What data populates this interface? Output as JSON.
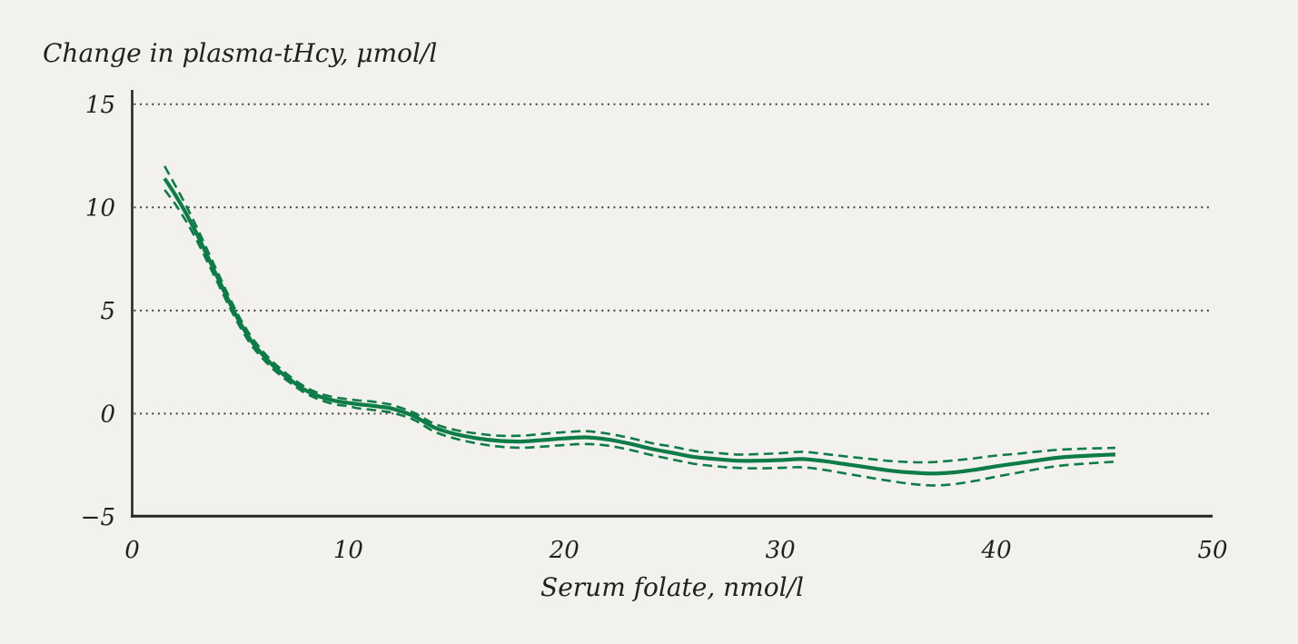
{
  "chart": {
    "title": "Change in plasma-tHcy, μmol/l",
    "xlabel": "Serum folate, nmol/l"
  },
  "colors": {
    "background": "#f2f1ee",
    "text": "#21211f",
    "axis": "#262624",
    "grid": "#3a3a38",
    "line_green": "#0d7c46"
  },
  "chart_data": {
    "type": "line",
    "title": "Change in plasma-tHcy, μmol/l",
    "xlabel": "Serum folate, nmol/l",
    "ylabel": "Change in plasma-tHcy, μmol/l",
    "xlim": [
      0,
      50
    ],
    "ylim": [
      -5,
      15
    ],
    "x_ticks": [
      0,
      10,
      20,
      30,
      40,
      50
    ],
    "y_ticks": [
      15,
      10,
      5,
      0,
      -5
    ],
    "gridlines_y": [
      15,
      10,
      5,
      0
    ],
    "grid_style": "dotted",
    "legend_position": "none",
    "x": [
      1.5,
      2,
      2.5,
      3,
      3.5,
      4,
      4.5,
      5,
      5.5,
      6,
      6.5,
      7,
      7.5,
      8,
      8.5,
      9,
      9.5,
      10,
      10.5,
      11,
      11.5,
      12,
      13,
      14,
      15,
      16,
      17,
      18,
      19,
      20,
      21,
      22,
      23,
      24,
      25,
      26,
      27,
      28,
      29,
      30,
      31,
      32,
      33,
      34,
      35,
      36,
      37,
      38,
      39,
      40,
      41,
      42,
      43,
      44,
      45,
      45.5
    ],
    "series": [
      {
        "name": "fitted-curve",
        "style": "solid",
        "values": [
          11.4,
          10.6,
          9.7,
          8.7,
          7.6,
          6.5,
          5.4,
          4.4,
          3.55,
          2.9,
          2.35,
          1.9,
          1.5,
          1.15,
          0.9,
          0.72,
          0.6,
          0.52,
          0.45,
          0.4,
          0.33,
          0.25,
          -0.1,
          -0.68,
          -1.0,
          -1.2,
          -1.32,
          -1.35,
          -1.28,
          -1.2,
          -1.15,
          -1.25,
          -1.45,
          -1.7,
          -1.9,
          -2.1,
          -2.2,
          -2.28,
          -2.28,
          -2.25,
          -2.2,
          -2.3,
          -2.45,
          -2.6,
          -2.75,
          -2.85,
          -2.9,
          -2.85,
          -2.72,
          -2.55,
          -2.4,
          -2.25,
          -2.12,
          -2.05,
          -2.0,
          -1.98
        ]
      },
      {
        "name": "ci-upper",
        "style": "dashed",
        "values": [
          12.0,
          11.05,
          10.08,
          9.02,
          7.88,
          6.75,
          5.63,
          4.61,
          3.75,
          3.08,
          2.52,
          2.06,
          1.65,
          1.3,
          1.05,
          0.88,
          0.77,
          0.7,
          0.64,
          0.6,
          0.52,
          0.43,
          0.06,
          -0.5,
          -0.8,
          -0.97,
          -1.07,
          -1.07,
          -0.98,
          -0.9,
          -0.85,
          -0.97,
          -1.17,
          -1.42,
          -1.6,
          -1.8,
          -1.9,
          -1.98,
          -1.96,
          -1.92,
          -1.85,
          -1.95,
          -2.07,
          -2.18,
          -2.29,
          -2.35,
          -2.35,
          -2.27,
          -2.16,
          -2.03,
          -1.94,
          -1.83,
          -1.74,
          -1.7,
          -1.67,
          -1.66
        ]
      },
      {
        "name": "ci-lower",
        "style": "dashed",
        "values": [
          10.85,
          10.15,
          9.32,
          8.38,
          7.32,
          6.25,
          5.17,
          4.19,
          3.35,
          2.72,
          2.18,
          1.74,
          1.35,
          1.0,
          0.75,
          0.56,
          0.43,
          0.36,
          0.25,
          0.2,
          0.13,
          0.05,
          -0.28,
          -0.88,
          -1.22,
          -1.45,
          -1.6,
          -1.65,
          -1.6,
          -1.52,
          -1.47,
          -1.55,
          -1.75,
          -2.0,
          -2.22,
          -2.43,
          -2.55,
          -2.63,
          -2.65,
          -2.63,
          -2.6,
          -2.72,
          -2.9,
          -3.08,
          -3.25,
          -3.4,
          -3.48,
          -3.42,
          -3.26,
          -3.05,
          -2.86,
          -2.67,
          -2.52,
          -2.43,
          -2.36,
          -2.33
        ]
      }
    ]
  }
}
